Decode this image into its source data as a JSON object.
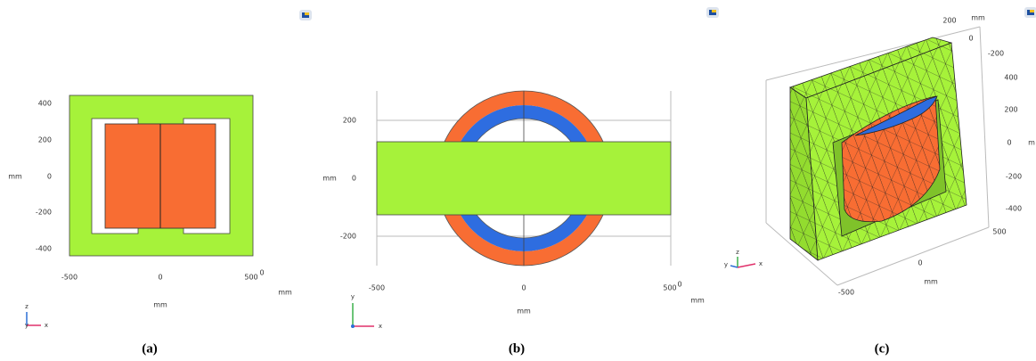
{
  "panels": [
    {
      "caption": "(a)",
      "y_ticks": [
        "400",
        "200",
        "0",
        "-200",
        "-400"
      ],
      "x_ticks": [
        "-500",
        "0",
        "500"
      ],
      "x_tick_extra": "0",
      "y_unit": "mm",
      "x_units": [
        "mm",
        "mm"
      ],
      "triad": [
        "z",
        "y",
        "x"
      ]
    },
    {
      "caption": "(b)",
      "y_ticks": [
        "200",
        "0",
        "-200"
      ],
      "x_ticks": [
        "-500",
        "0",
        "500"
      ],
      "x_tick_extra": "0",
      "y_unit": "mm",
      "x_units": [
        "mm",
        "mm"
      ],
      "triad": [
        "y",
        "x"
      ]
    },
    {
      "caption": "(c)",
      "right_ticks": [
        "400",
        "200",
        "0",
        "-200",
        "-400"
      ],
      "right_unit": "m",
      "top_ticks": [
        "200",
        "0",
        "-200"
      ],
      "top_unit": "mm",
      "bottom_ticks": [
        "500",
        "0",
        "-500"
      ],
      "bottom_unit": "mm",
      "triad": [
        "y",
        "z",
        "x"
      ]
    }
  ]
}
